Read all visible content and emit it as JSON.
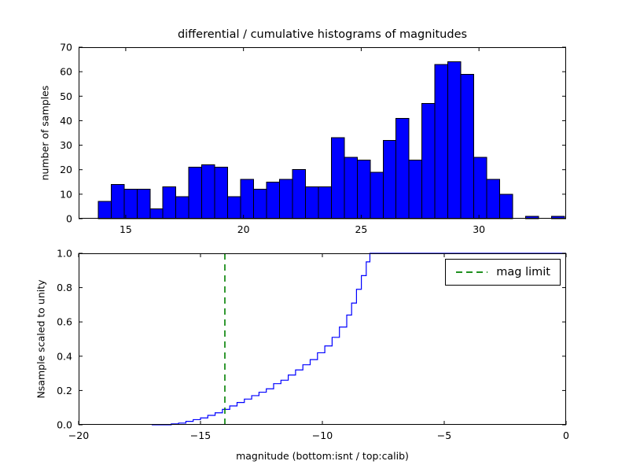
{
  "figure": {
    "background": "#ffffff",
    "axes_color": "#000000"
  },
  "chart_data": [
    {
      "type": "bar",
      "name": "differential-histogram",
      "title": "differential / cumulative histograms of magnitudes",
      "ylabel": "number of samples",
      "xlim": [
        13.0,
        33.7
      ],
      "ylim": [
        0,
        70
      ],
      "xticks": [
        15,
        20,
        25,
        30
      ],
      "xtick_labels": [
        "15",
        "20",
        "25",
        "30"
      ],
      "yticks": [
        0,
        10,
        20,
        30,
        40,
        50,
        60,
        70
      ],
      "ytick_labels": [
        "0",
        "10",
        "20",
        "30",
        "40",
        "50",
        "60",
        "70"
      ],
      "bin_start": 13.83,
      "bin_width": 0.55,
      "values": [
        7,
        14,
        12,
        12,
        4,
        13,
        9,
        21,
        22,
        21,
        9,
        16,
        12,
        15,
        16,
        20,
        13,
        13,
        33,
        25,
        24,
        19,
        32,
        41,
        24,
        47,
        63,
        64,
        59,
        25,
        16,
        10,
        0,
        1,
        0,
        1
      ],
      "bar_color": "#0000ff",
      "edge_color": "#000000",
      "grid": false
    },
    {
      "type": "line",
      "name": "cumulative-histogram",
      "ylabel": "Nsample scaled to unity",
      "xlabel": "magnitude (bottom:isnt / top:calib)",
      "xlim": [
        -20,
        0
      ],
      "ylim": [
        0.0,
        1.0
      ],
      "xticks": [
        -20,
        -15,
        -10,
        -5,
        0
      ],
      "xtick_labels": [
        "−20",
        "−15",
        "−10",
        "−5",
        "0"
      ],
      "yticks": [
        0.0,
        0.2,
        0.4,
        0.6,
        0.8,
        1.0
      ],
      "ytick_labels": [
        "0.0",
        "0.2",
        "0.4",
        "0.6",
        "0.8",
        "1.0"
      ],
      "line_color": "#0000ff",
      "start_x": -17.0,
      "step_points": [
        [
          -16.2,
          0.005
        ],
        [
          -15.9,
          0.01
        ],
        [
          -15.6,
          0.02
        ],
        [
          -15.3,
          0.03
        ],
        [
          -15.0,
          0.04
        ],
        [
          -14.7,
          0.055
        ],
        [
          -14.4,
          0.07
        ],
        [
          -14.1,
          0.09
        ],
        [
          -13.8,
          0.11
        ],
        [
          -13.5,
          0.13
        ],
        [
          -13.2,
          0.15
        ],
        [
          -12.9,
          0.17
        ],
        [
          -12.6,
          0.19
        ],
        [
          -12.3,
          0.21
        ],
        [
          -12.0,
          0.24
        ],
        [
          -11.7,
          0.26
        ],
        [
          -11.4,
          0.29
        ],
        [
          -11.1,
          0.32
        ],
        [
          -10.8,
          0.35
        ],
        [
          -10.5,
          0.38
        ],
        [
          -10.2,
          0.42
        ],
        [
          -9.9,
          0.46
        ],
        [
          -9.6,
          0.51
        ],
        [
          -9.3,
          0.57
        ],
        [
          -9.0,
          0.64
        ],
        [
          -8.8,
          0.71
        ],
        [
          -8.6,
          0.79
        ],
        [
          -8.4,
          0.87
        ],
        [
          -8.2,
          0.95
        ],
        [
          -8.05,
          1.0
        ]
      ],
      "mag_limit": {
        "x": -14,
        "color": "#008000",
        "style": "dashed"
      },
      "legend": {
        "position": "upper right",
        "entries": [
          {
            "label": "mag limit",
            "color": "#008000",
            "dashed": true
          }
        ]
      },
      "grid": false
    }
  ]
}
